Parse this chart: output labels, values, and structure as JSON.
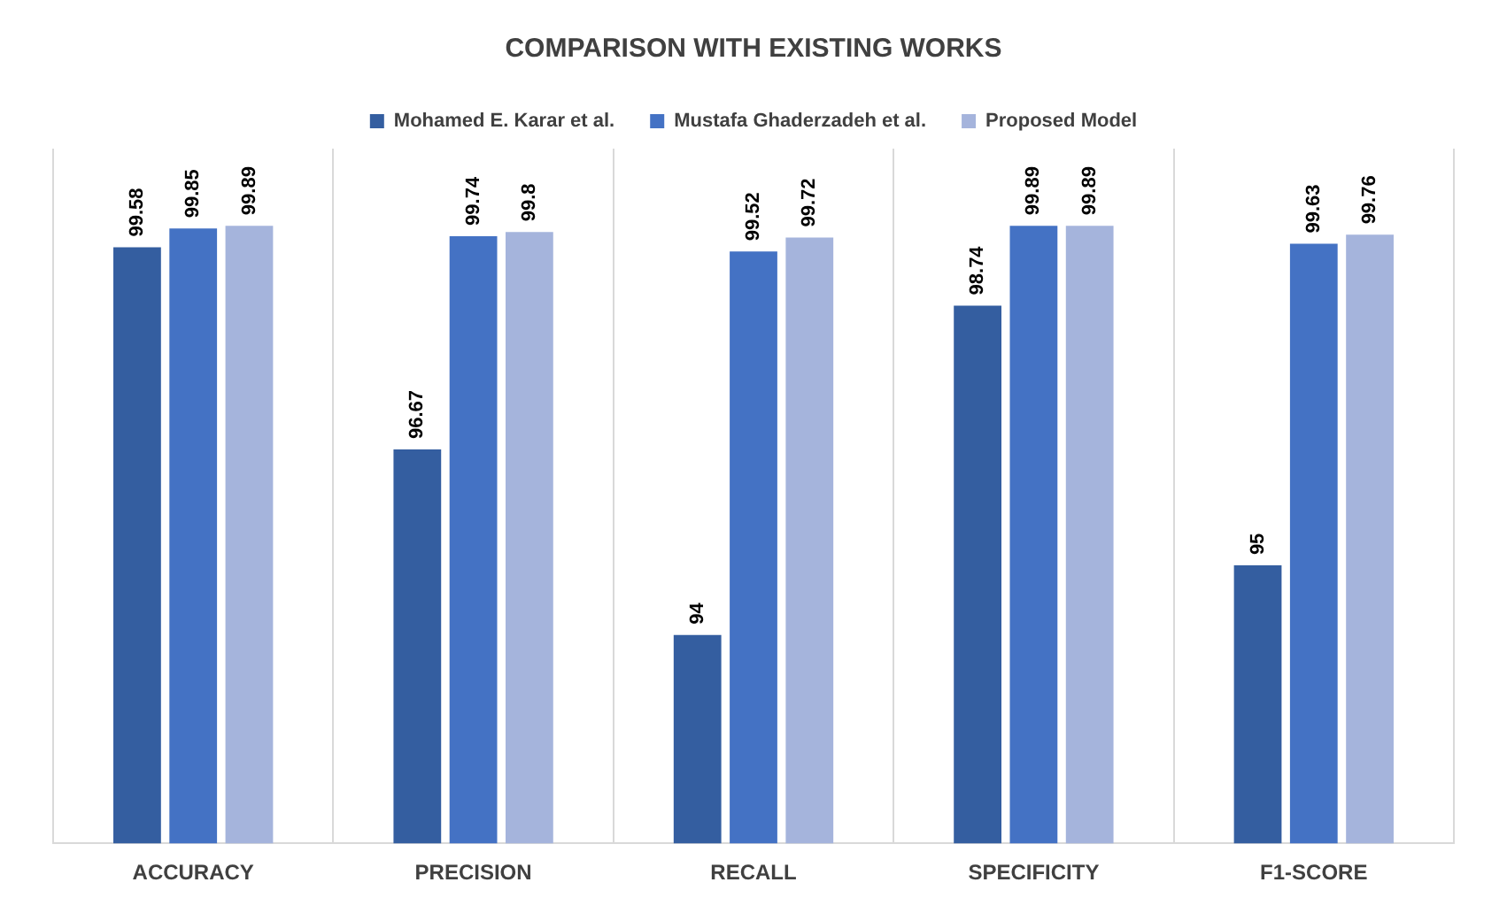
{
  "chart_data": {
    "type": "bar",
    "title": "COMPARISON WITH EXISTING WORKS",
    "categories": [
      "ACCURACY",
      "PRECISION",
      "RECALL",
      "SPECIFICITY",
      "F1-SCORE"
    ],
    "series": [
      {
        "name": "Mohamed E. Karar et al.",
        "color": "#345ea0",
        "values": [
          99.58,
          96.67,
          94,
          98.74,
          95
        ]
      },
      {
        "name": "Mustafa Ghaderzadeh et al.",
        "color": "#4472c4",
        "values": [
          99.85,
          99.74,
          99.52,
          99.89,
          99.63
        ]
      },
      {
        "name": "Proposed Model",
        "color": "#a5b4dc",
        "values": [
          99.89,
          99.8,
          99.72,
          99.89,
          99.76
        ]
      }
    ],
    "ylim": [
      91,
      101
    ],
    "tick_labels": "x",
    "grid": "x",
    "legend": "top",
    "data_labels": true
  }
}
